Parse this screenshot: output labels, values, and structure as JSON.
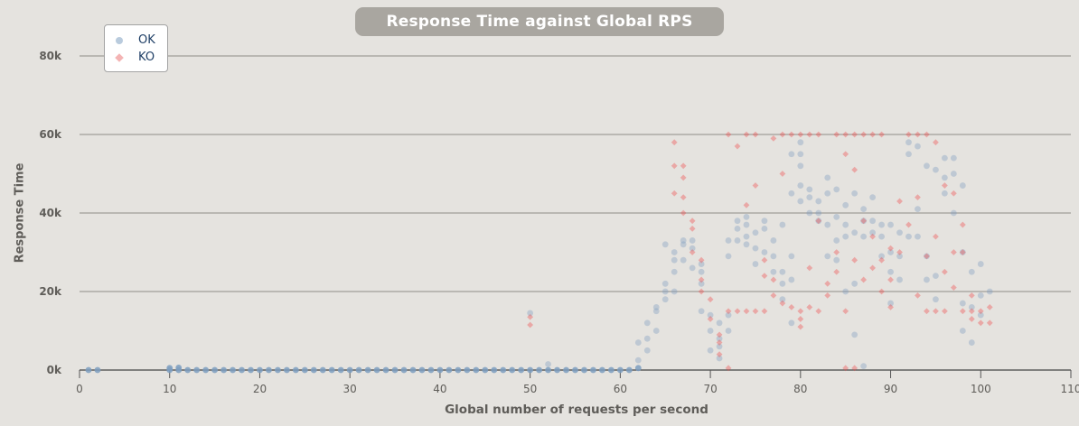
{
  "chart_data": {
    "type": "scatter",
    "title": "Response Time against Global RPS",
    "xlabel": "Global number of requests per second",
    "ylabel": "Response Time",
    "xlim": [
      0,
      110
    ],
    "ylim": [
      0,
      80000
    ],
    "x_ticks": [
      0,
      10,
      20,
      30,
      40,
      50,
      60,
      70,
      80,
      90,
      100,
      110
    ],
    "x_tick_labels": [
      "0",
      "10",
      "20",
      "30",
      "40",
      "50",
      "60",
      "70",
      "80",
      "90",
      "100",
      "110"
    ],
    "y_ticks": [
      0,
      20000,
      40000,
      60000,
      80000
    ],
    "y_tick_labels": [
      "0k",
      "20k",
      "40k",
      "60k",
      "80k"
    ],
    "grid": "horizontal",
    "legend_position": "top-left",
    "colors": {
      "OK": "#7d9ec0",
      "KO": "#ee4a4a"
    },
    "series": [
      {
        "name": "OK",
        "marker": "circle",
        "points": [
          [
            1,
            0
          ],
          [
            2,
            0
          ],
          [
            10,
            0
          ],
          [
            10,
            500
          ],
          [
            11,
            0
          ],
          [
            11,
            600
          ],
          [
            12,
            0
          ],
          [
            13,
            0
          ],
          [
            14,
            0
          ],
          [
            15,
            0
          ],
          [
            16,
            0
          ],
          [
            17,
            0
          ],
          [
            18,
            0
          ],
          [
            19,
            0
          ],
          [
            20,
            0
          ],
          [
            21,
            0
          ],
          [
            22,
            0
          ],
          [
            23,
            0
          ],
          [
            24,
            0
          ],
          [
            25,
            0
          ],
          [
            26,
            0
          ],
          [
            27,
            0
          ],
          [
            28,
            0
          ],
          [
            29,
            0
          ],
          [
            30,
            0
          ],
          [
            31,
            0
          ],
          [
            32,
            0
          ],
          [
            33,
            0
          ],
          [
            34,
            0
          ],
          [
            35,
            0
          ],
          [
            36,
            0
          ],
          [
            37,
            0
          ],
          [
            38,
            0
          ],
          [
            39,
            0
          ],
          [
            40,
            0
          ],
          [
            41,
            0
          ],
          [
            42,
            0
          ],
          [
            43,
            0
          ],
          [
            44,
            0
          ],
          [
            45,
            0
          ],
          [
            46,
            0
          ],
          [
            47,
            0
          ],
          [
            48,
            0
          ],
          [
            49,
            0
          ],
          [
            50,
            0
          ],
          [
            50,
            14500
          ],
          [
            51,
            0
          ],
          [
            52,
            0
          ],
          [
            52,
            1500
          ],
          [
            53,
            0
          ],
          [
            54,
            0
          ],
          [
            55,
            0
          ],
          [
            56,
            0
          ],
          [
            57,
            0
          ],
          [
            58,
            0
          ],
          [
            59,
            0
          ],
          [
            60,
            0
          ],
          [
            61,
            0
          ],
          [
            62,
            500
          ],
          [
            62,
            2500
          ],
          [
            62,
            7000
          ],
          [
            63,
            5000
          ],
          [
            63,
            8000
          ],
          [
            63,
            12000
          ],
          [
            64,
            10000
          ],
          [
            64,
            15000
          ],
          [
            64,
            16000
          ],
          [
            65,
            18000
          ],
          [
            65,
            20000
          ],
          [
            65,
            22000
          ],
          [
            65,
            32000
          ],
          [
            66,
            25000
          ],
          [
            66,
            28000
          ],
          [
            66,
            30000
          ],
          [
            66,
            20000
          ],
          [
            67,
            28000
          ],
          [
            67,
            32000
          ],
          [
            67,
            33000
          ],
          [
            68,
            26000
          ],
          [
            68,
            31000
          ],
          [
            68,
            33000
          ],
          [
            69,
            15000
          ],
          [
            69,
            22000
          ],
          [
            69,
            25000
          ],
          [
            69,
            27000
          ],
          [
            70,
            5000
          ],
          [
            70,
            10000
          ],
          [
            70,
            14000
          ],
          [
            71,
            3000
          ],
          [
            71,
            6000
          ],
          [
            71,
            8000
          ],
          [
            71,
            12000
          ],
          [
            72,
            10000
          ],
          [
            72,
            14000
          ],
          [
            72,
            29000
          ],
          [
            72,
            33000
          ],
          [
            73,
            33000
          ],
          [
            73,
            36000
          ],
          [
            73,
            38000
          ],
          [
            74,
            32000
          ],
          [
            74,
            34000
          ],
          [
            74,
            37000
          ],
          [
            74,
            39000
          ],
          [
            75,
            27000
          ],
          [
            75,
            31000
          ],
          [
            75,
            35000
          ],
          [
            76,
            30000
          ],
          [
            76,
            36000
          ],
          [
            76,
            38000
          ],
          [
            77,
            25000
          ],
          [
            77,
            29000
          ],
          [
            77,
            33000
          ],
          [
            78,
            18000
          ],
          [
            78,
            22000
          ],
          [
            78,
            25000
          ],
          [
            78,
            37000
          ],
          [
            79,
            12000
          ],
          [
            79,
            23000
          ],
          [
            79,
            29000
          ],
          [
            79,
            45000
          ],
          [
            79,
            55000
          ],
          [
            80,
            43000
          ],
          [
            80,
            47000
          ],
          [
            80,
            52000
          ],
          [
            80,
            55000
          ],
          [
            80,
            58000
          ],
          [
            81,
            40000
          ],
          [
            81,
            44000
          ],
          [
            81,
            46000
          ],
          [
            82,
            38000
          ],
          [
            82,
            40000
          ],
          [
            82,
            43000
          ],
          [
            83,
            29000
          ],
          [
            83,
            37000
          ],
          [
            83,
            45000
          ],
          [
            83,
            49000
          ],
          [
            84,
            28000
          ],
          [
            84,
            33000
          ],
          [
            84,
            39000
          ],
          [
            84,
            46000
          ],
          [
            85,
            20000
          ],
          [
            85,
            34000
          ],
          [
            85,
            37000
          ],
          [
            85,
            42000
          ],
          [
            86,
            9000
          ],
          [
            86,
            22000
          ],
          [
            86,
            35000
          ],
          [
            86,
            45000
          ],
          [
            87,
            1000
          ],
          [
            87,
            34000
          ],
          [
            87,
            38000
          ],
          [
            87,
            41000
          ],
          [
            88,
            35000
          ],
          [
            88,
            38000
          ],
          [
            88,
            44000
          ],
          [
            89,
            29000
          ],
          [
            89,
            34000
          ],
          [
            89,
            37000
          ],
          [
            90,
            17000
          ],
          [
            90,
            25000
          ],
          [
            90,
            30000
          ],
          [
            90,
            37000
          ],
          [
            91,
            23000
          ],
          [
            91,
            29000
          ],
          [
            91,
            35000
          ],
          [
            92,
            55000
          ],
          [
            92,
            58000
          ],
          [
            92,
            34000
          ],
          [
            93,
            57000
          ],
          [
            93,
            41000
          ],
          [
            93,
            34000
          ],
          [
            94,
            23000
          ],
          [
            94,
            29000
          ],
          [
            94,
            52000
          ],
          [
            95,
            18000
          ],
          [
            95,
            24000
          ],
          [
            95,
            51000
          ],
          [
            96,
            45000
          ],
          [
            96,
            49000
          ],
          [
            96,
            54000
          ],
          [
            97,
            40000
          ],
          [
            97,
            50000
          ],
          [
            97,
            54000
          ],
          [
            98,
            10000
          ],
          [
            98,
            17000
          ],
          [
            98,
            30000
          ],
          [
            98,
            47000
          ],
          [
            99,
            7000
          ],
          [
            99,
            16000
          ],
          [
            99,
            25000
          ],
          [
            100,
            14000
          ],
          [
            100,
            19000
          ],
          [
            100,
            27000
          ],
          [
            101,
            20000
          ]
        ]
      },
      {
        "name": "KO",
        "marker": "diamond",
        "points": [
          [
            50,
            11500
          ],
          [
            50,
            13500
          ],
          [
            66,
            58000
          ],
          [
            66,
            52000
          ],
          [
            66,
            45000
          ],
          [
            67,
            52000
          ],
          [
            67,
            49000
          ],
          [
            67,
            44000
          ],
          [
            67,
            40000
          ],
          [
            68,
            36000
          ],
          [
            68,
            38000
          ],
          [
            68,
            30000
          ],
          [
            69,
            28000
          ],
          [
            69,
            20000
          ],
          [
            69,
            23000
          ],
          [
            70,
            13000
          ],
          [
            70,
            18000
          ],
          [
            71,
            4000
          ],
          [
            71,
            7000
          ],
          [
            71,
            9000
          ],
          [
            72,
            60000
          ],
          [
            72,
            15000
          ],
          [
            72,
            500
          ],
          [
            73,
            57000
          ],
          [
            73,
            15000
          ],
          [
            74,
            60000
          ],
          [
            74,
            15000
          ],
          [
            74,
            42000
          ],
          [
            75,
            60000
          ],
          [
            75,
            15000
          ],
          [
            75,
            47000
          ],
          [
            76,
            15000
          ],
          [
            76,
            24000
          ],
          [
            76,
            28000
          ],
          [
            77,
            59000
          ],
          [
            77,
            19000
          ],
          [
            77,
            23000
          ],
          [
            78,
            60000
          ],
          [
            78,
            50000
          ],
          [
            78,
            17000
          ],
          [
            79,
            60000
          ],
          [
            79,
            16000
          ],
          [
            80,
            60000
          ],
          [
            80,
            15000
          ],
          [
            80,
            13000
          ],
          [
            80,
            11000
          ],
          [
            81,
            60000
          ],
          [
            81,
            16000
          ],
          [
            81,
            26000
          ],
          [
            82,
            60000
          ],
          [
            82,
            15000
          ],
          [
            82,
            38000
          ],
          [
            83,
            22000
          ],
          [
            83,
            19000
          ],
          [
            84,
            60000
          ],
          [
            84,
            25000
          ],
          [
            84,
            30000
          ],
          [
            85,
            60000
          ],
          [
            85,
            15000
          ],
          [
            85,
            55000
          ],
          [
            85,
            500
          ],
          [
            86,
            60000
          ],
          [
            86,
            500
          ],
          [
            86,
            51000
          ],
          [
            86,
            28000
          ],
          [
            87,
            60000
          ],
          [
            87,
            38000
          ],
          [
            87,
            23000
          ],
          [
            88,
            60000
          ],
          [
            88,
            34000
          ],
          [
            88,
            26000
          ],
          [
            89,
            60000
          ],
          [
            89,
            28000
          ],
          [
            89,
            20000
          ],
          [
            90,
            16000
          ],
          [
            90,
            23000
          ],
          [
            90,
            31000
          ],
          [
            91,
            43000
          ],
          [
            91,
            30000
          ],
          [
            92,
            60000
          ],
          [
            92,
            37000
          ],
          [
            93,
            60000
          ],
          [
            93,
            44000
          ],
          [
            93,
            19000
          ],
          [
            94,
            60000
          ],
          [
            94,
            15000
          ],
          [
            94,
            29000
          ],
          [
            95,
            15000
          ],
          [
            95,
            58000
          ],
          [
            95,
            34000
          ],
          [
            96,
            15000
          ],
          [
            96,
            25000
          ],
          [
            96,
            47000
          ],
          [
            97,
            45000
          ],
          [
            97,
            21000
          ],
          [
            97,
            30000
          ],
          [
            98,
            15000
          ],
          [
            98,
            37000
          ],
          [
            98,
            30000
          ],
          [
            99,
            15000
          ],
          [
            99,
            13000
          ],
          [
            99,
            19000
          ],
          [
            100,
            15000
          ],
          [
            100,
            12000
          ],
          [
            101,
            12000
          ],
          [
            101,
            16000
          ]
        ]
      }
    ]
  }
}
